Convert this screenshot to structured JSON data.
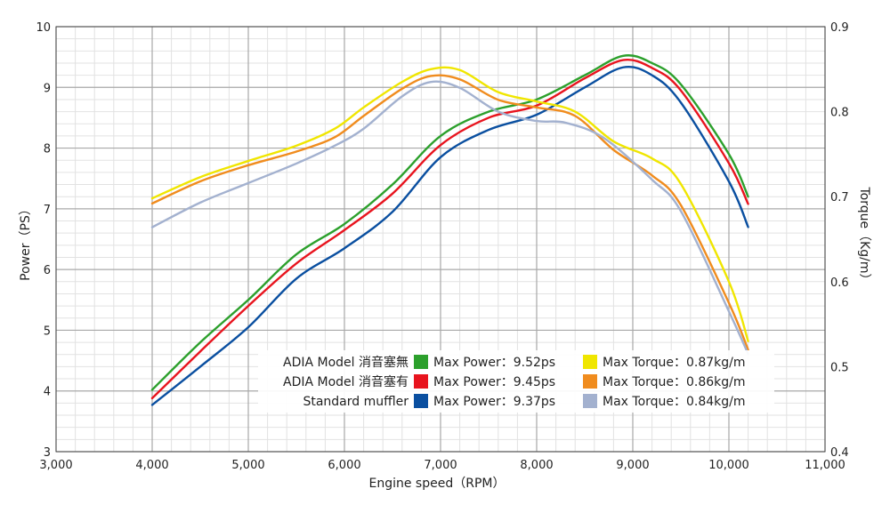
{
  "chart_data": {
    "type": "line",
    "xlabel": "Engine speed（RPM）",
    "ylabel_left": "Power（PS）",
    "ylabel_right": "Torque（Kg/m）",
    "x_range": [
      3000,
      11000
    ],
    "x_ticks": [
      3000,
      4000,
      5000,
      6000,
      7000,
      8000,
      9000,
      10000,
      11000
    ],
    "x_tick_labels": [
      "3,000",
      "4,000",
      "5,000",
      "6,000",
      "7,000",
      "8,000",
      "9,000",
      "10,000",
      "11,000"
    ],
    "y_left_range": [
      3,
      10
    ],
    "y_left_ticks": [
      "3",
      "4",
      "5",
      "6",
      "7",
      "8",
      "9",
      "10"
    ],
    "y_right_range": [
      0.4,
      0.9
    ],
    "y_right_ticks": [
      "0.4",
      "0.5",
      "0.6",
      "0.7",
      "0.8",
      "0.9"
    ],
    "grid": true,
    "legend_placement": "bottom-center",
    "legend": {
      "rows": [
        {
          "name": "ADIA Model 消音塞無",
          "power_label": "Max Power：9.52ps",
          "torque_label": "Max Torque：0.87kg/m",
          "power_color": "#2ca02c",
          "torque_color": "#f0e600"
        },
        {
          "name": "ADIA Model 消音塞有",
          "power_label": "Max Power：9.45ps",
          "torque_label": "Max Torque：0.86kg/m",
          "power_color": "#e8141e",
          "torque_color": "#f08c1e"
        },
        {
          "name": "Standard muffler",
          "power_label": "Max Power：9.37ps",
          "torque_label": "Max Torque：0.84kg/m",
          "power_color": "#0a4fa0",
          "torque_color": "#a3b1cf"
        }
      ]
    },
    "series": [
      {
        "axis": "left",
        "color": "#2ca02c",
        "points": [
          [
            4000,
            4.02
          ],
          [
            4500,
            4.8
          ],
          [
            5000,
            5.5
          ],
          [
            5500,
            6.25
          ],
          [
            6000,
            6.75
          ],
          [
            6500,
            7.4
          ],
          [
            7000,
            8.2
          ],
          [
            7500,
            8.6
          ],
          [
            8000,
            8.8
          ],
          [
            8500,
            9.2
          ],
          [
            8900,
            9.52
          ],
          [
            9200,
            9.4
          ],
          [
            9500,
            9.05
          ],
          [
            10000,
            7.9
          ],
          [
            10200,
            7.2
          ]
        ]
      },
      {
        "axis": "left",
        "color": "#e8141e",
        "points": [
          [
            4000,
            3.88
          ],
          [
            4500,
            4.65
          ],
          [
            5000,
            5.4
          ],
          [
            5500,
            6.1
          ],
          [
            6000,
            6.65
          ],
          [
            6500,
            7.25
          ],
          [
            7000,
            8.05
          ],
          [
            7500,
            8.5
          ],
          [
            8000,
            8.7
          ],
          [
            8500,
            9.15
          ],
          [
            8900,
            9.45
          ],
          [
            9200,
            9.32
          ],
          [
            9500,
            8.95
          ],
          [
            10000,
            7.75
          ],
          [
            10200,
            7.08
          ]
        ]
      },
      {
        "axis": "left",
        "color": "#0a4fa0",
        "points": [
          [
            4000,
            3.77
          ],
          [
            4500,
            4.4
          ],
          [
            5000,
            5.05
          ],
          [
            5500,
            5.85
          ],
          [
            6000,
            6.35
          ],
          [
            6500,
            6.95
          ],
          [
            7000,
            7.85
          ],
          [
            7500,
            8.3
          ],
          [
            8000,
            8.55
          ],
          [
            8500,
            9.0
          ],
          [
            8900,
            9.33
          ],
          [
            9200,
            9.2
          ],
          [
            9500,
            8.75
          ],
          [
            10000,
            7.45
          ],
          [
            10200,
            6.7
          ]
        ]
      },
      {
        "axis": "right",
        "color": "#f0e600",
        "points": [
          [
            4000,
            0.698
          ],
          [
            4500,
            0.723
          ],
          [
            5000,
            0.742
          ],
          [
            5500,
            0.76
          ],
          [
            5900,
            0.78
          ],
          [
            6200,
            0.805
          ],
          [
            6600,
            0.835
          ],
          [
            6900,
            0.85
          ],
          [
            7200,
            0.849
          ],
          [
            7600,
            0.823
          ],
          [
            8000,
            0.812
          ],
          [
            8400,
            0.8
          ],
          [
            8800,
            0.765
          ],
          [
            9200,
            0.745
          ],
          [
            9500,
            0.715
          ],
          [
            10000,
            0.6
          ],
          [
            10200,
            0.53
          ]
        ]
      },
      {
        "axis": "right",
        "color": "#f08c1e",
        "points": [
          [
            4000,
            0.692
          ],
          [
            4500,
            0.718
          ],
          [
            5000,
            0.737
          ],
          [
            5500,
            0.753
          ],
          [
            5900,
            0.77
          ],
          [
            6200,
            0.795
          ],
          [
            6600,
            0.827
          ],
          [
            6900,
            0.842
          ],
          [
            7200,
            0.838
          ],
          [
            7600,
            0.814
          ],
          [
            8000,
            0.805
          ],
          [
            8400,
            0.795
          ],
          [
            8800,
            0.755
          ],
          [
            9200,
            0.725
          ],
          [
            9500,
            0.69
          ],
          [
            10000,
            0.575
          ],
          [
            10200,
            0.52
          ]
        ]
      },
      {
        "axis": "right",
        "color": "#a3b1cf",
        "points": [
          [
            4000,
            0.664
          ],
          [
            4500,
            0.693
          ],
          [
            5000,
            0.716
          ],
          [
            5500,
            0.739
          ],
          [
            5900,
            0.76
          ],
          [
            6200,
            0.78
          ],
          [
            6600,
            0.818
          ],
          [
            6900,
            0.835
          ],
          [
            7200,
            0.828
          ],
          [
            7600,
            0.8
          ],
          [
            8000,
            0.789
          ],
          [
            8300,
            0.787
          ],
          [
            8700,
            0.769
          ],
          [
            9200,
            0.72
          ],
          [
            9500,
            0.683
          ],
          [
            10000,
            0.565
          ],
          [
            10200,
            0.515
          ]
        ]
      }
    ]
  }
}
